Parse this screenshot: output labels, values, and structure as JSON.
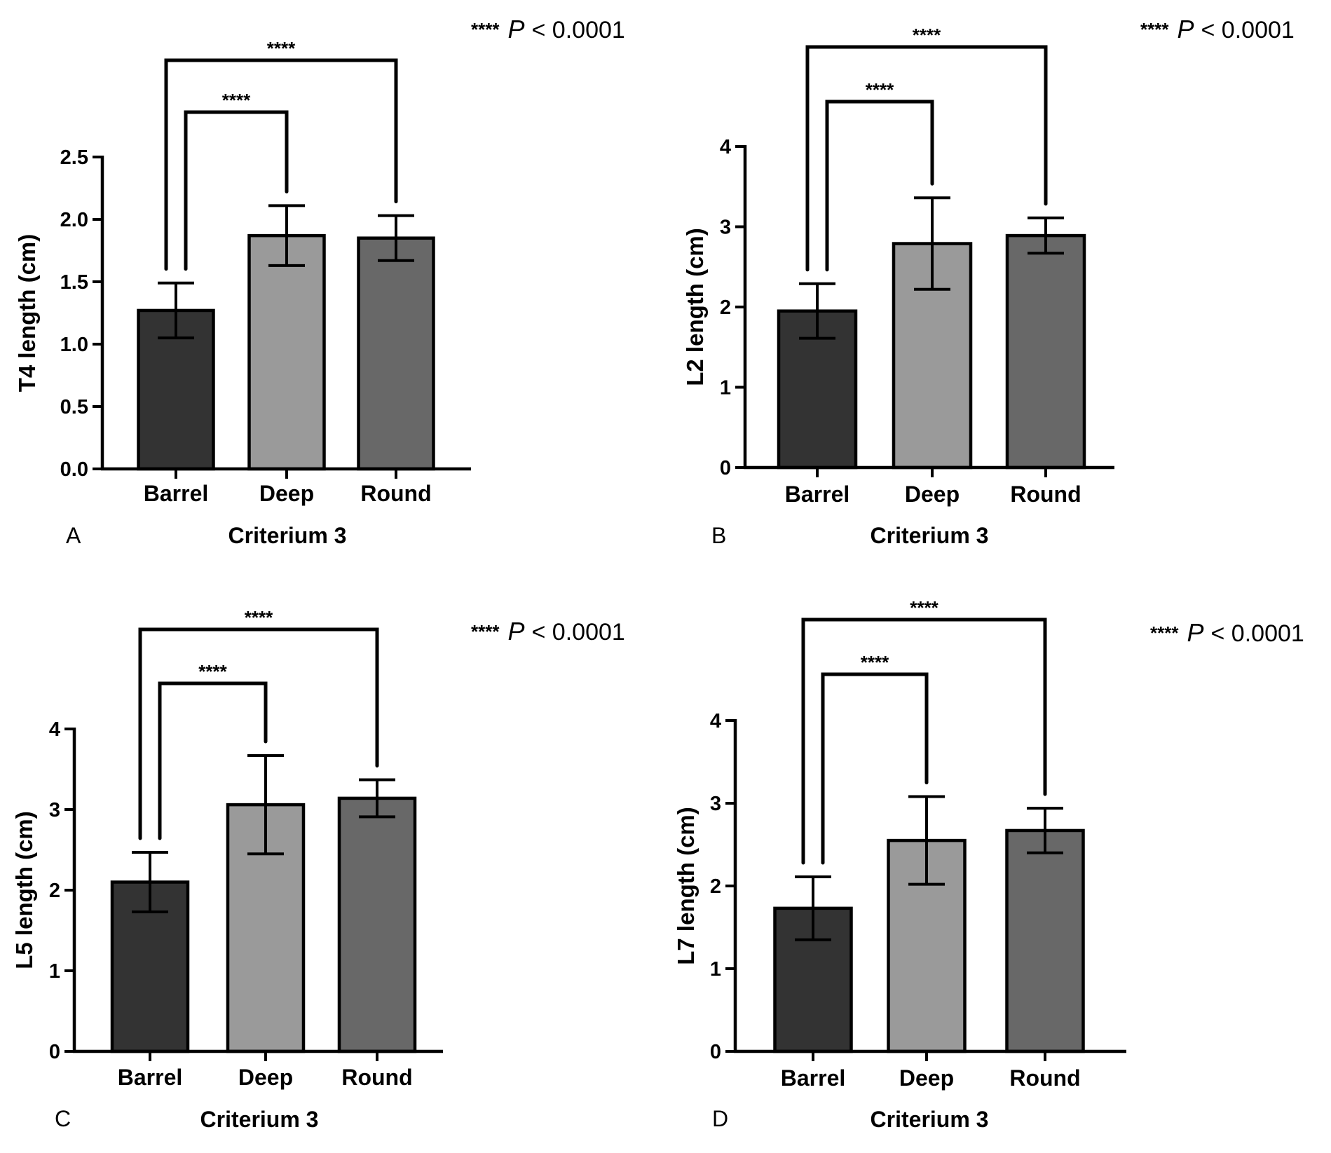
{
  "figure": {
    "panels": [
      {
        "letter": "A",
        "p_note": {
          "stars": "****",
          "p": "P",
          "rest": "< 0.0001"
        },
        "comparisons": [
          {
            "from": 0,
            "to": 1,
            "label": "****"
          },
          {
            "from": 0,
            "to": 2,
            "label": "****"
          }
        ]
      },
      {
        "letter": "B",
        "p_note": {
          "stars": "****",
          "p": "P",
          "rest": "< 0.0001"
        },
        "comparisons": [
          {
            "from": 0,
            "to": 1,
            "label": "****"
          },
          {
            "from": 0,
            "to": 2,
            "label": "****"
          }
        ]
      },
      {
        "letter": "C",
        "p_note": {
          "stars": "****",
          "p": "P",
          "rest": "< 0.0001"
        },
        "comparisons": [
          {
            "from": 0,
            "to": 1,
            "label": "****"
          },
          {
            "from": 0,
            "to": 2,
            "label": "****"
          }
        ]
      },
      {
        "letter": "D",
        "p_note": {
          "stars": "****",
          "p": "P",
          "rest": "< 0.0001"
        },
        "comparisons": [
          {
            "from": 0,
            "to": 1,
            "label": "****"
          },
          {
            "from": 0,
            "to": 2,
            "label": "****"
          }
        ]
      }
    ]
  },
  "chart_data": [
    {
      "type": "bar",
      "panel": "A",
      "categories": [
        "Barrel",
        "Deep",
        "Round"
      ],
      "values": [
        1.27,
        1.87,
        1.85
      ],
      "error": [
        0.22,
        0.24,
        0.18
      ],
      "colors": [
        "#333333",
        "#9a9a9a",
        "#686868"
      ],
      "xlabel": "Criterium 3",
      "ylabel": "T4 length (cm)",
      "ylim": [
        0,
        2.5
      ],
      "yticks": [
        0,
        0.5,
        1.0,
        1.5,
        2.0,
        2.5
      ],
      "ytick_labels": [
        "0.0",
        "0.5",
        "1.0",
        "1.5",
        "2.0",
        "2.5"
      ]
    },
    {
      "type": "bar",
      "panel": "B",
      "categories": [
        "Barrel",
        "Deep",
        "Round"
      ],
      "values": [
        1.95,
        2.79,
        2.89
      ],
      "error": [
        0.34,
        0.57,
        0.22
      ],
      "colors": [
        "#333333",
        "#9a9a9a",
        "#686868"
      ],
      "xlabel": "Criterium 3",
      "ylabel": "L2 length (cm)",
      "ylim": [
        0,
        4
      ],
      "yticks": [
        0,
        1,
        2,
        3,
        4
      ],
      "ytick_labels": [
        "0",
        "1",
        "2",
        "3",
        "4"
      ]
    },
    {
      "type": "bar",
      "panel": "C",
      "categories": [
        "Barrel",
        "Deep",
        "Round"
      ],
      "values": [
        2.1,
        3.06,
        3.14
      ],
      "error": [
        0.37,
        0.61,
        0.23
      ],
      "colors": [
        "#333333",
        "#9a9a9a",
        "#686868"
      ],
      "xlabel": "Criterium 3",
      "ylabel": "L5 length (cm)",
      "ylim": [
        0,
        4
      ],
      "yticks": [
        0,
        1,
        2,
        3,
        4
      ],
      "ytick_labels": [
        "0",
        "1",
        "2",
        "3",
        "4"
      ]
    },
    {
      "type": "bar",
      "panel": "D",
      "categories": [
        "Barrel",
        "Deep",
        "Round"
      ],
      "values": [
        1.73,
        2.55,
        2.67
      ],
      "error": [
        0.38,
        0.53,
        0.27
      ],
      "colors": [
        "#333333",
        "#9a9a9a",
        "#686868"
      ],
      "xlabel": "Criterium 3",
      "ylabel": "L7 length (cm)",
      "ylim": [
        0,
        4
      ],
      "yticks": [
        0,
        1,
        2,
        3,
        4
      ],
      "ytick_labels": [
        "0",
        "1",
        "2",
        "3",
        "4"
      ]
    }
  ]
}
